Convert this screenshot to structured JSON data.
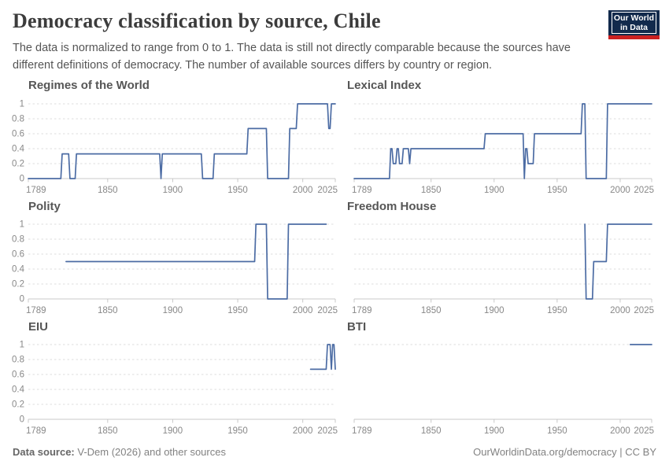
{
  "header": {
    "title": "Democracy classification by source, Chile",
    "subtitle": "The data is normalized to range from 0 to 1. The data is still not directly comparable because the sources have different definitions of democracy. The number of available sources differs by country or region.",
    "logo": {
      "line1": "Our World",
      "line2": "in Data"
    }
  },
  "footer": {
    "source_label": "Data source:",
    "source_rest": " V-Dem (2026) and other sources",
    "right_text": "OurWorldinData.org/democracy | CC BY"
  },
  "colors": {
    "line": "#4C6CA4",
    "grid": "#DEDEDE",
    "axis": "#C8C8C8",
    "tick_label": "#888888",
    "panel_title": "#565656",
    "title": "#3C3C3C",
    "subtitle": "#555555",
    "footer": "#828282",
    "logo_bg": "#122A4C",
    "logo_red": "#CB2121",
    "logo_text": "#FFFFFF"
  },
  "chart_data": [
    {
      "id": "regimes-of-the-world",
      "title": "Regimes of the World",
      "type": "line",
      "xlim": [
        1789,
        2025
      ],
      "ylim": [
        0,
        1
      ],
      "x_ticks": [
        1789,
        1850,
        1900,
        1950,
        2000,
        2025
      ],
      "y_ticks": [
        0,
        0.2,
        0.4,
        0.6,
        0.8,
        1
      ],
      "show_y_labels": true,
      "grid": true,
      "points": [
        [
          1789,
          0
        ],
        [
          1814,
          0
        ],
        [
          1815,
          0.33
        ],
        [
          1820,
          0.33
        ],
        [
          1821,
          0
        ],
        [
          1825,
          0
        ],
        [
          1826,
          0.33
        ],
        [
          1890,
          0.33
        ],
        [
          1891,
          0
        ],
        [
          1892,
          0.33
        ],
        [
          1922,
          0.33
        ],
        [
          1923,
          0
        ],
        [
          1931,
          0
        ],
        [
          1932,
          0.33
        ],
        [
          1957,
          0.33
        ],
        [
          1958,
          0.67
        ],
        [
          1972,
          0.67
        ],
        [
          1973,
          0
        ],
        [
          1989,
          0
        ],
        [
          1990,
          0.67
        ],
        [
          1995,
          0.67
        ],
        [
          1996,
          1
        ],
        [
          2019,
          1
        ],
        [
          2020,
          0.67
        ],
        [
          2021,
          0.67
        ],
        [
          2022,
          1
        ],
        [
          2025,
          1
        ]
      ]
    },
    {
      "id": "lexical-index",
      "title": "Lexical Index",
      "type": "line",
      "xlim": [
        1789,
        2025
      ],
      "ylim": [
        0,
        1
      ],
      "x_ticks": [
        1789,
        1850,
        1900,
        1950,
        2000,
        2025
      ],
      "y_ticks": [
        0,
        0.2,
        0.4,
        0.6,
        0.8,
        1
      ],
      "show_y_labels": false,
      "grid": true,
      "points": [
        [
          1789,
          0
        ],
        [
          1817,
          0
        ],
        [
          1818,
          0.4
        ],
        [
          1819,
          0.4
        ],
        [
          1820,
          0.2
        ],
        [
          1822,
          0.2
        ],
        [
          1823,
          0.4
        ],
        [
          1824,
          0.4
        ],
        [
          1825,
          0.2
        ],
        [
          1827,
          0.2
        ],
        [
          1828,
          0.4
        ],
        [
          1832,
          0.4
        ],
        [
          1833,
          0.2
        ],
        [
          1834,
          0.4
        ],
        [
          1892,
          0.4
        ],
        [
          1893,
          0.6
        ],
        [
          1923,
          0.6
        ],
        [
          1924,
          0
        ],
        [
          1925,
          0.4
        ],
        [
          1926,
          0.4
        ],
        [
          1927,
          0.2
        ],
        [
          1931,
          0.2
        ],
        [
          1932,
          0.6
        ],
        [
          1969,
          0.6
        ],
        [
          1970,
          1
        ],
        [
          1972,
          1
        ],
        [
          1973,
          0
        ],
        [
          1989,
          0
        ],
        [
          1990,
          1
        ],
        [
          2025,
          1
        ]
      ]
    },
    {
      "id": "polity",
      "title": "Polity",
      "type": "line",
      "xlim": [
        1789,
        2025
      ],
      "ylim": [
        0,
        1
      ],
      "x_ticks": [
        1789,
        1850,
        1900,
        1950,
        2000,
        2025
      ],
      "y_ticks": [
        0,
        0.2,
        0.4,
        0.6,
        0.8,
        1
      ],
      "show_y_labels": true,
      "grid": true,
      "points": [
        [
          1818,
          0.5
        ],
        [
          1963,
          0.5
        ],
        [
          1964,
          1
        ],
        [
          1972,
          1
        ],
        [
          1973,
          0
        ],
        [
          1988,
          0
        ],
        [
          1989,
          1
        ],
        [
          2018,
          1
        ]
      ]
    },
    {
      "id": "freedom-house",
      "title": "Freedom House",
      "type": "line",
      "xlim": [
        1789,
        2025
      ],
      "ylim": [
        0,
        1
      ],
      "x_ticks": [
        1789,
        1850,
        1900,
        1950,
        2000,
        2025
      ],
      "y_ticks": [
        0,
        0.2,
        0.4,
        0.6,
        0.8,
        1
      ],
      "show_y_labels": false,
      "grid": true,
      "points": [
        [
          1972,
          1
        ],
        [
          1973,
          0
        ],
        [
          1978,
          0
        ],
        [
          1979,
          0.5
        ],
        [
          1989,
          0.5
        ],
        [
          1990,
          1
        ],
        [
          2025,
          1
        ]
      ]
    },
    {
      "id": "eiu",
      "title": "EIU",
      "type": "line",
      "xlim": [
        1789,
        2025
      ],
      "ylim": [
        0,
        1
      ],
      "x_ticks": [
        1789,
        1850,
        1900,
        1950,
        2000,
        2025
      ],
      "y_ticks": [
        0,
        0.2,
        0.4,
        0.6,
        0.8,
        1
      ],
      "show_y_labels": true,
      "grid": true,
      "points": [
        [
          2006,
          0.67
        ],
        [
          2018,
          0.67
        ],
        [
          2019,
          1
        ],
        [
          2021,
          1
        ],
        [
          2022,
          0.67
        ],
        [
          2023,
          1
        ],
        [
          2024,
          1
        ],
        [
          2025,
          0.67
        ]
      ]
    },
    {
      "id": "bti",
      "title": "BTI",
      "type": "line",
      "xlim": [
        1789,
        2025
      ],
      "ylim": [
        0,
        1
      ],
      "x_ticks": [
        1789,
        1850,
        1900,
        1950,
        2000,
        2025
      ],
      "y_ticks": [
        1
      ],
      "show_y_labels": false,
      "grid": true,
      "points": [
        [
          2008,
          1
        ],
        [
          2025,
          1
        ]
      ]
    }
  ]
}
